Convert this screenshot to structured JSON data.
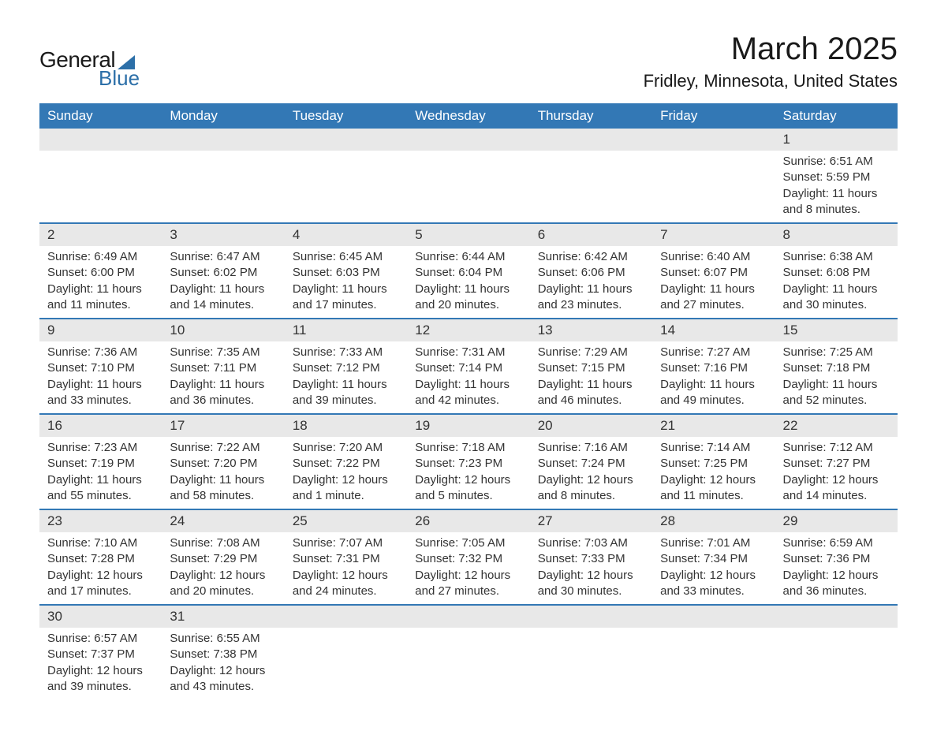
{
  "header": {
    "logo_text_1": "General",
    "logo_text_2": "Blue",
    "month_title": "March 2025",
    "location": "Fridley, Minnesota, United States"
  },
  "colors": {
    "header_bg": "#3378b5",
    "header_text": "#ffffff",
    "daynum_bg": "#e8e8e8",
    "text": "#333333",
    "logo_blue": "#2c6fa8"
  },
  "day_headers": [
    "Sunday",
    "Monday",
    "Tuesday",
    "Wednesday",
    "Thursday",
    "Friday",
    "Saturday"
  ],
  "weeks": [
    [
      null,
      null,
      null,
      null,
      null,
      null,
      {
        "num": "1",
        "sunrise": "Sunrise: 6:51 AM",
        "sunset": "Sunset: 5:59 PM",
        "daylight1": "Daylight: 11 hours",
        "daylight2": "and 8 minutes."
      }
    ],
    [
      {
        "num": "2",
        "sunrise": "Sunrise: 6:49 AM",
        "sunset": "Sunset: 6:00 PM",
        "daylight1": "Daylight: 11 hours",
        "daylight2": "and 11 minutes."
      },
      {
        "num": "3",
        "sunrise": "Sunrise: 6:47 AM",
        "sunset": "Sunset: 6:02 PM",
        "daylight1": "Daylight: 11 hours",
        "daylight2": "and 14 minutes."
      },
      {
        "num": "4",
        "sunrise": "Sunrise: 6:45 AM",
        "sunset": "Sunset: 6:03 PM",
        "daylight1": "Daylight: 11 hours",
        "daylight2": "and 17 minutes."
      },
      {
        "num": "5",
        "sunrise": "Sunrise: 6:44 AM",
        "sunset": "Sunset: 6:04 PM",
        "daylight1": "Daylight: 11 hours",
        "daylight2": "and 20 minutes."
      },
      {
        "num": "6",
        "sunrise": "Sunrise: 6:42 AM",
        "sunset": "Sunset: 6:06 PM",
        "daylight1": "Daylight: 11 hours",
        "daylight2": "and 23 minutes."
      },
      {
        "num": "7",
        "sunrise": "Sunrise: 6:40 AM",
        "sunset": "Sunset: 6:07 PM",
        "daylight1": "Daylight: 11 hours",
        "daylight2": "and 27 minutes."
      },
      {
        "num": "8",
        "sunrise": "Sunrise: 6:38 AM",
        "sunset": "Sunset: 6:08 PM",
        "daylight1": "Daylight: 11 hours",
        "daylight2": "and 30 minutes."
      }
    ],
    [
      {
        "num": "9",
        "sunrise": "Sunrise: 7:36 AM",
        "sunset": "Sunset: 7:10 PM",
        "daylight1": "Daylight: 11 hours",
        "daylight2": "and 33 minutes."
      },
      {
        "num": "10",
        "sunrise": "Sunrise: 7:35 AM",
        "sunset": "Sunset: 7:11 PM",
        "daylight1": "Daylight: 11 hours",
        "daylight2": "and 36 minutes."
      },
      {
        "num": "11",
        "sunrise": "Sunrise: 7:33 AM",
        "sunset": "Sunset: 7:12 PM",
        "daylight1": "Daylight: 11 hours",
        "daylight2": "and 39 minutes."
      },
      {
        "num": "12",
        "sunrise": "Sunrise: 7:31 AM",
        "sunset": "Sunset: 7:14 PM",
        "daylight1": "Daylight: 11 hours",
        "daylight2": "and 42 minutes."
      },
      {
        "num": "13",
        "sunrise": "Sunrise: 7:29 AM",
        "sunset": "Sunset: 7:15 PM",
        "daylight1": "Daylight: 11 hours",
        "daylight2": "and 46 minutes."
      },
      {
        "num": "14",
        "sunrise": "Sunrise: 7:27 AM",
        "sunset": "Sunset: 7:16 PM",
        "daylight1": "Daylight: 11 hours",
        "daylight2": "and 49 minutes."
      },
      {
        "num": "15",
        "sunrise": "Sunrise: 7:25 AM",
        "sunset": "Sunset: 7:18 PM",
        "daylight1": "Daylight: 11 hours",
        "daylight2": "and 52 minutes."
      }
    ],
    [
      {
        "num": "16",
        "sunrise": "Sunrise: 7:23 AM",
        "sunset": "Sunset: 7:19 PM",
        "daylight1": "Daylight: 11 hours",
        "daylight2": "and 55 minutes."
      },
      {
        "num": "17",
        "sunrise": "Sunrise: 7:22 AM",
        "sunset": "Sunset: 7:20 PM",
        "daylight1": "Daylight: 11 hours",
        "daylight2": "and 58 minutes."
      },
      {
        "num": "18",
        "sunrise": "Sunrise: 7:20 AM",
        "sunset": "Sunset: 7:22 PM",
        "daylight1": "Daylight: 12 hours",
        "daylight2": "and 1 minute."
      },
      {
        "num": "19",
        "sunrise": "Sunrise: 7:18 AM",
        "sunset": "Sunset: 7:23 PM",
        "daylight1": "Daylight: 12 hours",
        "daylight2": "and 5 minutes."
      },
      {
        "num": "20",
        "sunrise": "Sunrise: 7:16 AM",
        "sunset": "Sunset: 7:24 PM",
        "daylight1": "Daylight: 12 hours",
        "daylight2": "and 8 minutes."
      },
      {
        "num": "21",
        "sunrise": "Sunrise: 7:14 AM",
        "sunset": "Sunset: 7:25 PM",
        "daylight1": "Daylight: 12 hours",
        "daylight2": "and 11 minutes."
      },
      {
        "num": "22",
        "sunrise": "Sunrise: 7:12 AM",
        "sunset": "Sunset: 7:27 PM",
        "daylight1": "Daylight: 12 hours",
        "daylight2": "and 14 minutes."
      }
    ],
    [
      {
        "num": "23",
        "sunrise": "Sunrise: 7:10 AM",
        "sunset": "Sunset: 7:28 PM",
        "daylight1": "Daylight: 12 hours",
        "daylight2": "and 17 minutes."
      },
      {
        "num": "24",
        "sunrise": "Sunrise: 7:08 AM",
        "sunset": "Sunset: 7:29 PM",
        "daylight1": "Daylight: 12 hours",
        "daylight2": "and 20 minutes."
      },
      {
        "num": "25",
        "sunrise": "Sunrise: 7:07 AM",
        "sunset": "Sunset: 7:31 PM",
        "daylight1": "Daylight: 12 hours",
        "daylight2": "and 24 minutes."
      },
      {
        "num": "26",
        "sunrise": "Sunrise: 7:05 AM",
        "sunset": "Sunset: 7:32 PM",
        "daylight1": "Daylight: 12 hours",
        "daylight2": "and 27 minutes."
      },
      {
        "num": "27",
        "sunrise": "Sunrise: 7:03 AM",
        "sunset": "Sunset: 7:33 PM",
        "daylight1": "Daylight: 12 hours",
        "daylight2": "and 30 minutes."
      },
      {
        "num": "28",
        "sunrise": "Sunrise: 7:01 AM",
        "sunset": "Sunset: 7:34 PM",
        "daylight1": "Daylight: 12 hours",
        "daylight2": "and 33 minutes."
      },
      {
        "num": "29",
        "sunrise": "Sunrise: 6:59 AM",
        "sunset": "Sunset: 7:36 PM",
        "daylight1": "Daylight: 12 hours",
        "daylight2": "and 36 minutes."
      }
    ],
    [
      {
        "num": "30",
        "sunrise": "Sunrise: 6:57 AM",
        "sunset": "Sunset: 7:37 PM",
        "daylight1": "Daylight: 12 hours",
        "daylight2": "and 39 minutes."
      },
      {
        "num": "31",
        "sunrise": "Sunrise: 6:55 AM",
        "sunset": "Sunset: 7:38 PM",
        "daylight1": "Daylight: 12 hours",
        "daylight2": "and 43 minutes."
      },
      null,
      null,
      null,
      null,
      null
    ]
  ]
}
